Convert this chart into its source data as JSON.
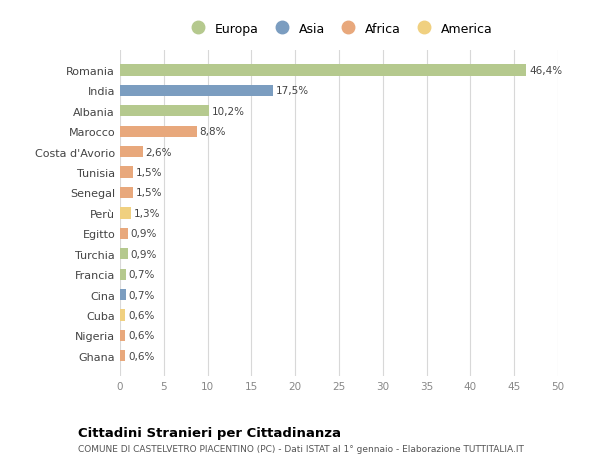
{
  "countries": [
    "Romania",
    "India",
    "Albania",
    "Marocco",
    "Costa d'Avorio",
    "Tunisia",
    "Senegal",
    "Perù",
    "Egitto",
    "Turchia",
    "Francia",
    "Cina",
    "Cuba",
    "Nigeria",
    "Ghana"
  ],
  "values": [
    46.4,
    17.5,
    10.2,
    8.8,
    2.6,
    1.5,
    1.5,
    1.3,
    0.9,
    0.9,
    0.7,
    0.7,
    0.6,
    0.6,
    0.6
  ],
  "labels": [
    "46,4%",
    "17,5%",
    "10,2%",
    "8,8%",
    "2,6%",
    "1,5%",
    "1,5%",
    "1,3%",
    "0,9%",
    "0,9%",
    "0,7%",
    "0,7%",
    "0,6%",
    "0,6%",
    "0,6%"
  ],
  "continents": [
    "Europa",
    "Asia",
    "Europa",
    "Africa",
    "Africa",
    "Africa",
    "Africa",
    "America",
    "Africa",
    "Europa",
    "Europa",
    "Asia",
    "America",
    "Africa",
    "Africa"
  ],
  "continent_colors": {
    "Europa": "#b5c98e",
    "Asia": "#7b9dc0",
    "Africa": "#e8a87c",
    "America": "#f0d080"
  },
  "legend_order": [
    "Europa",
    "Asia",
    "Africa",
    "America"
  ],
  "title1": "Cittadini Stranieri per Cittadinanza",
  "title2": "COMUNE DI CASTELVETRO PIACENTINO (PC) - Dati ISTAT al 1° gennaio - Elaborazione TUTTITALIA.IT",
  "xlim": [
    0,
    50
  ],
  "xticks": [
    0,
    5,
    10,
    15,
    20,
    25,
    30,
    35,
    40,
    45,
    50
  ],
  "bg_color": "#ffffff",
  "grid_color": "#d8d8d8",
  "bar_height": 0.55
}
